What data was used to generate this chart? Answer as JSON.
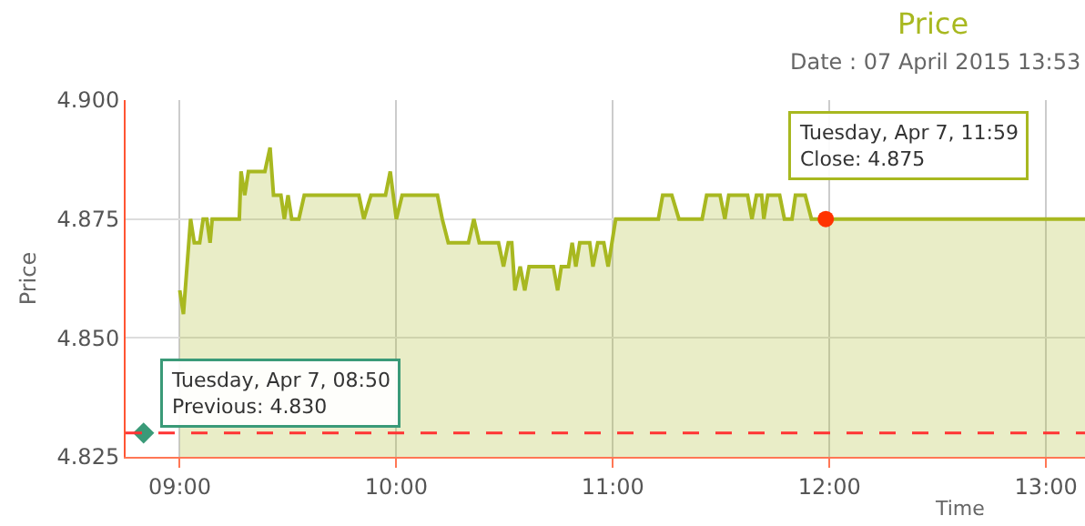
{
  "chart_data": {
    "type": "area",
    "title": "Price",
    "subtitle": "Date : 07 April 2015 13:53",
    "xlabel": "Time",
    "ylabel": "Price",
    "xlim": [
      8.75,
      13.18
    ],
    "ylim": [
      4.825,
      4.9
    ],
    "xticks": [
      {
        "value": 9,
        "label": "09:00"
      },
      {
        "value": 10,
        "label": "10:00"
      },
      {
        "value": 11,
        "label": "11:00"
      },
      {
        "value": 12,
        "label": "12:00"
      },
      {
        "value": 13,
        "label": "13:00"
      }
    ],
    "yticks": [
      {
        "value": 4.825,
        "label": "4.825"
      },
      {
        "value": 4.85,
        "label": "4.850"
      },
      {
        "value": 4.875,
        "label": "4.875"
      },
      {
        "value": 4.9,
        "label": "4.900"
      }
    ],
    "grid": true,
    "series": [
      {
        "color": "#a8b820",
        "marker": "none",
        "x": [
          9.0,
          9.017,
          9.05,
          9.067,
          9.092,
          9.108,
          9.125,
          9.14,
          9.15,
          9.275,
          9.283,
          9.3,
          9.317,
          9.393,
          9.417,
          9.433,
          9.467,
          9.483,
          9.5,
          9.517,
          9.55,
          9.575,
          9.827,
          9.85,
          9.883,
          9.95,
          9.972,
          10.0,
          10.027,
          10.19,
          10.212,
          10.24,
          10.333,
          10.358,
          10.383,
          10.472,
          10.495,
          10.517,
          10.533,
          10.548,
          10.572,
          10.593,
          10.613,
          10.725,
          10.745,
          10.762,
          10.795,
          10.812,
          10.829,
          10.847,
          10.893,
          10.908,
          10.93,
          10.958,
          10.978,
          11.013,
          11.21,
          11.23,
          11.272,
          11.305,
          11.412,
          11.433,
          11.495,
          11.517,
          11.535,
          11.622,
          11.642,
          11.663,
          11.687,
          11.697,
          11.715,
          11.77,
          11.792,
          11.827,
          11.843,
          11.888,
          11.917,
          11.983,
          13.18
        ],
        "values": [
          4.86,
          4.855,
          4.875,
          4.87,
          4.87,
          4.875,
          4.875,
          4.87,
          4.875,
          4.875,
          4.885,
          4.88,
          4.885,
          4.885,
          4.89,
          4.88,
          4.88,
          4.875,
          4.88,
          4.875,
          4.875,
          4.88,
          4.88,
          4.875,
          4.88,
          4.88,
          4.885,
          4.875,
          4.88,
          4.88,
          4.875,
          4.87,
          4.87,
          4.875,
          4.87,
          4.87,
          4.865,
          4.87,
          4.87,
          4.86,
          4.865,
          4.86,
          4.865,
          4.865,
          4.86,
          4.865,
          4.865,
          4.87,
          4.865,
          4.87,
          4.87,
          4.865,
          4.87,
          4.87,
          4.865,
          4.875,
          4.875,
          4.88,
          4.88,
          4.875,
          4.875,
          4.88,
          4.88,
          4.875,
          4.88,
          4.88,
          4.875,
          4.88,
          4.88,
          4.875,
          4.88,
          4.88,
          4.875,
          4.875,
          4.88,
          4.88,
          4.875,
          4.875,
          4.875
        ]
      },
      {
        "type": "scatter",
        "color": "#3a9a78",
        "marker": "diamond",
        "x": [
          8.833
        ],
        "values": [
          4.83
        ]
      },
      {
        "type": "scatter",
        "color": "#ff3300",
        "marker": "circle",
        "x": [
          11.983
        ],
        "values": [
          4.875
        ]
      }
    ],
    "ref_lines": [
      {
        "axis": "y",
        "value": 4.83,
        "label": null,
        "color": "#ff3333",
        "line_style": "dashed"
      }
    ],
    "annotations": [
      {
        "text": "Tuesday, Apr 7, 08:50\nPrevious: 4.830",
        "x": 8.833,
        "y": 4.83
      },
      {
        "text": "Tuesday, Apr 7, 11:59\nClose: 4.875",
        "x": 11.983,
        "y": 4.875
      }
    ]
  }
}
